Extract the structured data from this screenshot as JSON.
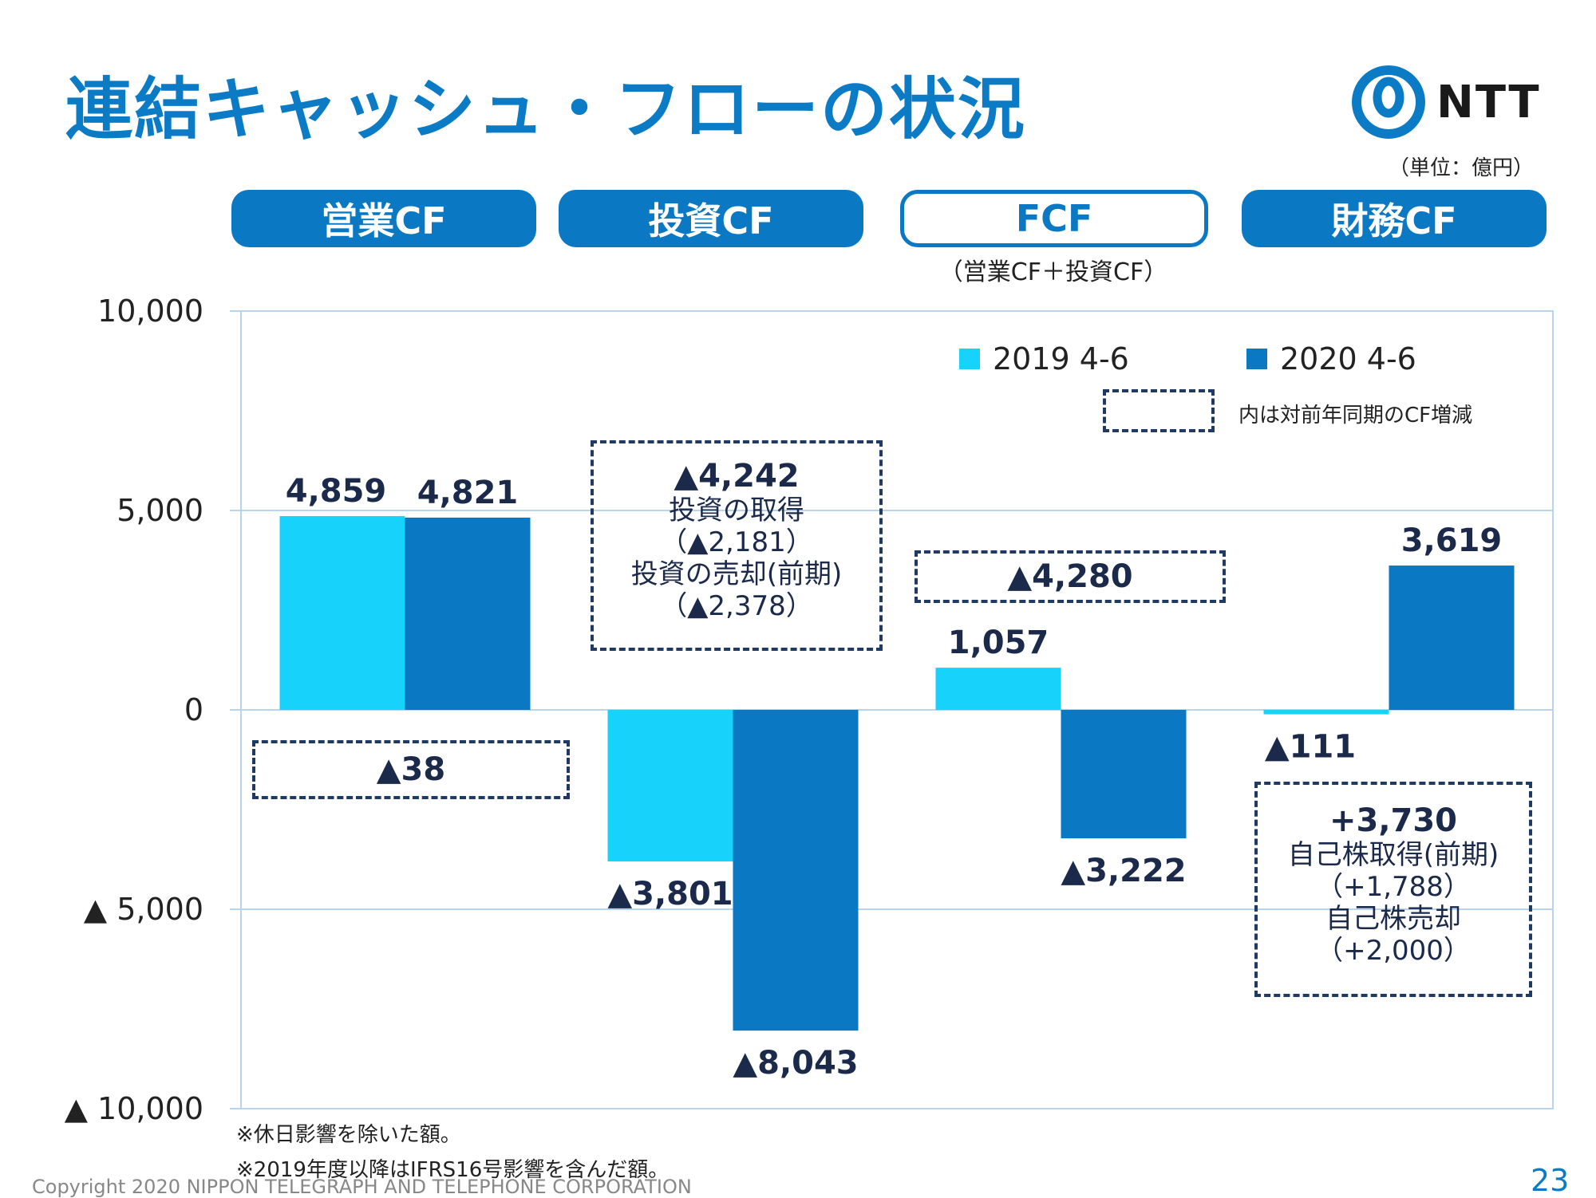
{
  "title": "連結キャッシュ・フローの状況",
  "logo": {
    "text": "NTT"
  },
  "unit": "（単位：億円）",
  "categories": [
    {
      "label": "営業CF",
      "style": "filled"
    },
    {
      "label": "投資CF",
      "style": "filled"
    },
    {
      "label": "FCF",
      "style": "outline",
      "sub": "（営業CF＋投資CF）"
    },
    {
      "label": "財務CF",
      "style": "filled"
    }
  ],
  "legend": {
    "series_2019": "2019 4-6",
    "series_2020": "2020 4-6",
    "box_note": "内は対前年同期のCF増減"
  },
  "boxes": {
    "op": {
      "main": "▲38"
    },
    "inv": {
      "main": "▲4,242",
      "l1": "投資の取得",
      "l2": "（▲2,181）",
      "l3": "投資の売却(前期)",
      "l4": "（▲2,378）"
    },
    "fcf": {
      "main": "▲4,280"
    },
    "fin": {
      "main": "+3,730",
      "l1": "自己株取得(前期)",
      "l2": "（+1,788）",
      "l3": "自己株売却",
      "l4": "（+2,000）"
    }
  },
  "notes": {
    "n1": "※休日影響を除いた額。",
    "n2": "※2019年度以降はIFRS16号影響を含んだ額。"
  },
  "copyright": "Copyright 2020 NIPPON TELEGRAPH AND TELEPHONE CORPORATION",
  "page_number": "23",
  "colors": {
    "series_2019": "#17d2fb",
    "series_2020": "#0a78c2",
    "title": "#0a7bc4",
    "grid": "#b8d4ee"
  },
  "chart_data": {
    "type": "bar",
    "categories": [
      "営業CF",
      "投資CF",
      "FCF",
      "財務CF"
    ],
    "series": [
      {
        "name": "2019 4-6",
        "values": [
          4859,
          -3801,
          1057,
          -111
        ],
        "labels": [
          "4,859",
          "▲3,801",
          "1,057",
          "▲111"
        ]
      },
      {
        "name": "2020 4-6",
        "values": [
          4821,
          -8043,
          -3222,
          3619
        ],
        "labels": [
          "4,821",
          "▲8,043",
          "▲3,222",
          "3,619"
        ]
      }
    ],
    "y_ticks": [
      10000,
      5000,
      0,
      -5000,
      -10000
    ],
    "y_tick_labels": [
      "10,000",
      "5,000",
      "0",
      "▲ 5,000",
      "▲ 10,000"
    ],
    "ylim": [
      -10000,
      10000
    ],
    "grid": true,
    "legend_position": "top-right"
  }
}
